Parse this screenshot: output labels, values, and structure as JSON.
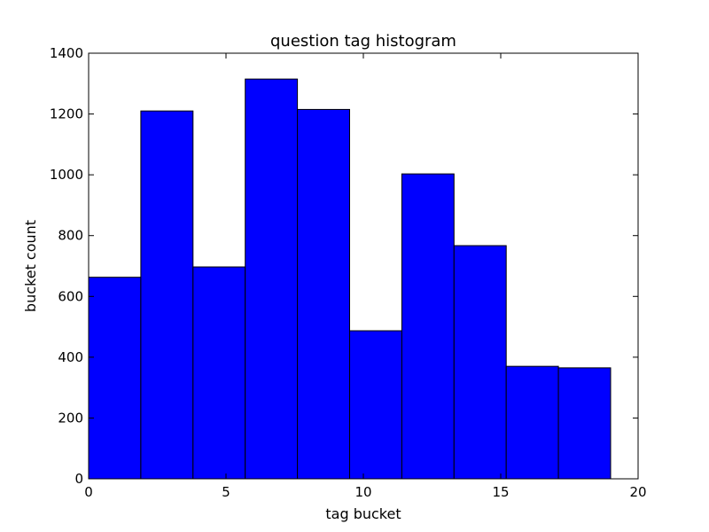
{
  "chart_data": {
    "type": "bar",
    "title": "question tag histogram",
    "xlabel": "tag bucket",
    "ylabel": "bucket count",
    "xlim": [
      0,
      20
    ],
    "ylim": [
      0,
      1400
    ],
    "xticks": [
      "0",
      "5",
      "10",
      "15",
      "20"
    ],
    "yticks": [
      "0",
      "200",
      "400",
      "600",
      "800",
      "1000",
      "1200",
      "1400"
    ],
    "bar_color": "#0000ff",
    "grid": false,
    "bins": [
      {
        "start": 0.0,
        "end": 1.9,
        "value": 663
      },
      {
        "start": 1.9,
        "end": 3.8,
        "value": 1210
      },
      {
        "start": 3.8,
        "end": 5.7,
        "value": 697
      },
      {
        "start": 5.7,
        "end": 7.6,
        "value": 1315
      },
      {
        "start": 7.6,
        "end": 9.5,
        "value": 1215
      },
      {
        "start": 9.5,
        "end": 11.4,
        "value": 487
      },
      {
        "start": 11.4,
        "end": 13.3,
        "value": 1003
      },
      {
        "start": 13.3,
        "end": 15.2,
        "value": 767
      },
      {
        "start": 15.2,
        "end": 17.1,
        "value": 370
      },
      {
        "start": 17.1,
        "end": 19.0,
        "value": 365
      }
    ]
  }
}
